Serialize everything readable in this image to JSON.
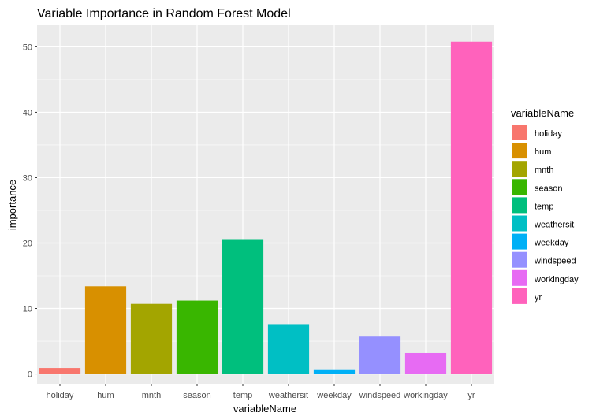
{
  "chart_data": {
    "type": "bar",
    "title": "Variable Importance in Random Forest Model",
    "xlabel": "variableName",
    "ylabel": "importance",
    "categories": [
      "holiday",
      "hum",
      "mnth",
      "season",
      "temp",
      "weathersit",
      "weekday",
      "windspeed",
      "workingday",
      "yr"
    ],
    "values": [
      0.9,
      13.4,
      10.7,
      11.2,
      20.6,
      7.6,
      0.7,
      5.7,
      3.2,
      50.8
    ],
    "colors": [
      "#F8766D",
      "#D89000",
      "#A3A500",
      "#39B600",
      "#00BF7D",
      "#00BFC4",
      "#00B0F6",
      "#9590FF",
      "#E76BF3",
      "#FF62BC"
    ],
    "ylim": [
      -1.5,
      53.3
    ],
    "yticks": [
      0,
      10,
      20,
      30,
      40,
      50
    ],
    "ytick_labels": [
      "0",
      "10",
      "20",
      "30",
      "40",
      "50"
    ],
    "grid": true,
    "legend": {
      "title": "variableName",
      "position": "right",
      "entries": [
        "holiday",
        "hum",
        "mnth",
        "season",
        "temp",
        "weathersit",
        "weekday",
        "windspeed",
        "workingday",
        "yr"
      ]
    },
    "panel_background": "#EBEBEB",
    "grid_color": "#FFFFFF"
  }
}
